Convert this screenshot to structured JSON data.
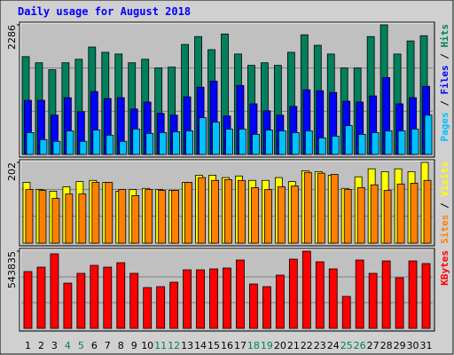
{
  "chart_data": [
    {
      "type": "bar",
      "title": "Daily usage for August 2018",
      "categories": [
        "1",
        "2",
        "3",
        "4",
        "5",
        "6",
        "7",
        "8",
        "9",
        "10",
        "11",
        "12",
        "13",
        "14",
        "15",
        "16",
        "17",
        "18",
        "19",
        "20",
        "21",
        "22",
        "23",
        "24",
        "25",
        "26",
        "27",
        "28",
        "29",
        "30",
        "31"
      ],
      "category_label_colors": [
        "#000000",
        "#000000",
        "#000000",
        "#00805c",
        "#00805c",
        "#000000",
        "#000000",
        "#000000",
        "#000000",
        "#000000",
        "#00805c",
        "#00805c",
        "#000000",
        "#000000",
        "#000000",
        "#000000",
        "#000000",
        "#00805c",
        "#00805c",
        "#000000",
        "#000000",
        "#000000",
        "#000000",
        "#000000",
        "#00805c",
        "#00805c",
        "#000000",
        "#000000",
        "#000000",
        "#000000",
        "#000000"
      ],
      "legend_separator": " / ",
      "series": [
        {
          "name": "Hits",
          "color": "#00805c",
          "values": [
            1725,
            1617,
            1494,
            1617,
            1679,
            1894,
            1802,
            1771,
            1617,
            1679,
            1525,
            1540,
            1940,
            2079,
            1848,
            2125,
            1771,
            1571,
            1617,
            1571,
            1802,
            2110,
            1925,
            1771,
            1525,
            1525,
            2079,
            2286,
            1771,
            2002,
            2094
          ]
        },
        {
          "name": "Files",
          "color": "#0000ff",
          "values": [
            955,
            955,
            693,
            1001,
            755,
            1109,
            986,
            1001,
            801,
            924,
            724,
            693,
            1016,
            1186,
            1294,
            678,
            1217,
            893,
            770,
            693,
            847,
            1140,
            1124,
            1093,
            939,
            924,
            1032,
            1355,
            893,
            1001,
            1201
          ]
        },
        {
          "name": "Pages",
          "color": "#00c0ff",
          "values": [
            385,
            262,
            231,
            416,
            231,
            431,
            339,
            231,
            447,
            370,
            385,
            400,
            416,
            647,
            570,
            447,
            447,
            354,
            431,
            416,
            385,
            416,
            293,
            323,
            508,
            354,
            385,
            416,
            416,
            447,
            693
          ]
        }
      ],
      "ylim": [
        0,
        2286
      ],
      "yticks": [
        2286
      ]
    },
    {
      "type": "bar",
      "legend_separator": " / ",
      "series": [
        {
          "name": "Visits",
          "color": "#ffff00",
          "values": [
            152,
            134,
            130,
            141,
            154,
            157,
            152,
            130,
            134,
            137,
            134,
            132,
            152,
            170,
            170,
            164,
            168,
            157,
            157,
            164,
            154,
            181,
            179,
            170,
            137,
            166,
            186,
            179,
            186,
            179,
            202
          ]
        },
        {
          "name": "Sites",
          "color": "#ff8000",
          "values": [
            134,
            132,
            112,
            123,
            123,
            152,
            152,
            134,
            119,
            134,
            132,
            132,
            152,
            164,
            157,
            159,
            157,
            139,
            134,
            141,
            143,
            177,
            175,
            172,
            134,
            139,
            146,
            132,
            148,
            150,
            157
          ]
        }
      ],
      "ylim": [
        0,
        202
      ],
      "yticks": [
        202
      ]
    },
    {
      "type": "bar",
      "series": [
        {
          "name": "KBytes",
          "color": "#ff0000",
          "values": [
            400064,
            431319,
            525084,
            318801,
            387562,
            443821,
            431319,
            462574,
            387562,
            287546,
            293797,
            325052,
            412566,
            412566,
            418817,
            425068,
            481327,
            312550,
            293797,
            375060,
            487578,
            543835,
            468825,
            418817,
            225036,
            481327,
            387562,
            475076,
            356307,
            475076,
            456323
          ]
        }
      ],
      "ylim": [
        0,
        543835
      ],
      "yticks": [
        543835
      ]
    }
  ]
}
